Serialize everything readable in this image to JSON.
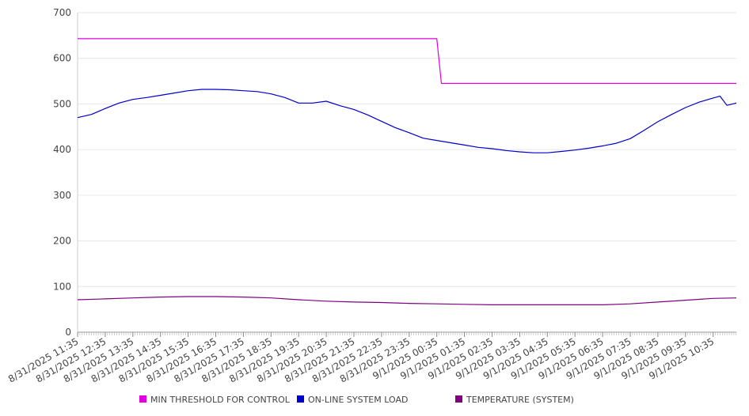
{
  "chart_data": {
    "type": "line",
    "title": "",
    "xlabel": "",
    "ylabel": "",
    "ylim": [
      0,
      700
    ],
    "yticks": [
      0,
      100,
      200,
      300,
      400,
      500,
      600,
      700
    ],
    "grid": true,
    "legend_position": "bottom",
    "x_categories": [
      "8/31/2025 11:35",
      "8/31/2025 12:35",
      "8/31/2025 13:35",
      "8/31/2025 14:35",
      "8/31/2025 15:35",
      "8/31/2025 16:35",
      "8/31/2025 17:35",
      "8/31/2025 18:35",
      "8/31/2025 19:35",
      "8/31/2025 20:35",
      "8/31/2025 21:35",
      "8/31/2025 22:35",
      "8/31/2025 23:35",
      "9/1/2025 00:35",
      "9/1/2025 01:35",
      "9/1/2025 02:35",
      "9/1/2025 03:35",
      "9/1/2025 04:35",
      "9/1/2025 05:35",
      "9/1/2025 06:35",
      "9/1/2025 07:35",
      "9/1/2025 08:35",
      "9/1/2025 09:35",
      "9/1/2025 10:35"
    ],
    "series": [
      {
        "name": "MIN THRESHOLD FOR CONTROL",
        "color": "#e000e0",
        "points": [
          [
            "8/31/2025 11:35",
            643
          ],
          [
            "9/1/2025 00:35",
            643
          ],
          [
            "9/1/2025 00:45",
            545
          ],
          [
            "9/1/2025 11:35",
            545
          ]
        ]
      },
      {
        "name": "ON-LINE SYSTEM LOAD",
        "color": "#0000cc",
        "points": [
          [
            "8/31/2025 11:35",
            470
          ],
          [
            "8/31/2025 12:05",
            477
          ],
          [
            "8/31/2025 12:35",
            490
          ],
          [
            "8/31/2025 13:05",
            502
          ],
          [
            "8/31/2025 13:35",
            510
          ],
          [
            "8/31/2025 14:05",
            514
          ],
          [
            "8/31/2025 14:35",
            519
          ],
          [
            "8/31/2025 15:05",
            524
          ],
          [
            "8/31/2025 15:35",
            529
          ],
          [
            "8/31/2025 16:05",
            532
          ],
          [
            "8/31/2025 16:35",
            532
          ],
          [
            "8/31/2025 17:05",
            531
          ],
          [
            "8/31/2025 17:35",
            529
          ],
          [
            "8/31/2025 18:05",
            527
          ],
          [
            "8/31/2025 18:35",
            522
          ],
          [
            "8/31/2025 19:05",
            514
          ],
          [
            "8/31/2025 19:35",
            502
          ],
          [
            "8/31/2025 20:05",
            502
          ],
          [
            "8/31/2025 20:35",
            506
          ],
          [
            "8/31/2025 21:05",
            496
          ],
          [
            "8/31/2025 21:35",
            488
          ],
          [
            "8/31/2025 22:05",
            476
          ],
          [
            "8/31/2025 22:35",
            462
          ],
          [
            "8/31/2025 23:05",
            448
          ],
          [
            "8/31/2025 23:35",
            437
          ],
          [
            "9/1/2025 00:05",
            425
          ],
          [
            "9/1/2025 00:35",
            420
          ],
          [
            "9/1/2025 01:05",
            415
          ],
          [
            "9/1/2025 01:35",
            410
          ],
          [
            "9/1/2025 02:05",
            405
          ],
          [
            "9/1/2025 02:35",
            402
          ],
          [
            "9/1/2025 03:05",
            398
          ],
          [
            "9/1/2025 03:35",
            395
          ],
          [
            "9/1/2025 04:05",
            393
          ],
          [
            "9/1/2025 04:35",
            393
          ],
          [
            "9/1/2025 05:05",
            396
          ],
          [
            "9/1/2025 05:35",
            399
          ],
          [
            "9/1/2025 06:05",
            403
          ],
          [
            "9/1/2025 06:35",
            408
          ],
          [
            "9/1/2025 07:05",
            414
          ],
          [
            "9/1/2025 07:35",
            424
          ],
          [
            "9/1/2025 08:05",
            442
          ],
          [
            "9/1/2025 08:35",
            461
          ],
          [
            "9/1/2025 09:05",
            477
          ],
          [
            "9/1/2025 09:35",
            492
          ],
          [
            "9/1/2025 10:05",
            504
          ],
          [
            "9/1/2025 10:35",
            513
          ],
          [
            "9/1/2025 10:50",
            517
          ],
          [
            "9/1/2025 11:05",
            497
          ],
          [
            "9/1/2025 11:35",
            502
          ]
        ]
      },
      {
        "name": "TEMPERATURE (SYSTEM)",
        "color": "#800080",
        "points": [
          [
            "8/31/2025 11:35",
            71
          ],
          [
            "8/31/2025 12:35",
            73
          ],
          [
            "8/31/2025 13:35",
            75
          ],
          [
            "8/31/2025 14:35",
            77
          ],
          [
            "8/31/2025 15:35",
            78
          ],
          [
            "8/31/2025 16:35",
            78
          ],
          [
            "8/31/2025 17:35",
            77
          ],
          [
            "8/31/2025 18:35",
            75
          ],
          [
            "8/31/2025 19:35",
            71
          ],
          [
            "8/31/2025 20:35",
            68
          ],
          [
            "8/31/2025 21:35",
            66
          ],
          [
            "8/31/2025 22:35",
            65
          ],
          [
            "8/31/2025 23:35",
            63
          ],
          [
            "9/1/2025 00:35",
            62
          ],
          [
            "9/1/2025 01:35",
            61
          ],
          [
            "9/1/2025 02:35",
            60
          ],
          [
            "9/1/2025 03:35",
            60
          ],
          [
            "9/1/2025 04:35",
            60
          ],
          [
            "9/1/2025 05:35",
            60
          ],
          [
            "9/1/2025 06:35",
            60
          ],
          [
            "9/1/2025 07:35",
            62
          ],
          [
            "9/1/2025 08:35",
            66
          ],
          [
            "9/1/2025 09:35",
            70
          ],
          [
            "9/1/2025 10:35",
            74
          ],
          [
            "9/1/2025 11:35",
            75
          ]
        ]
      }
    ]
  }
}
